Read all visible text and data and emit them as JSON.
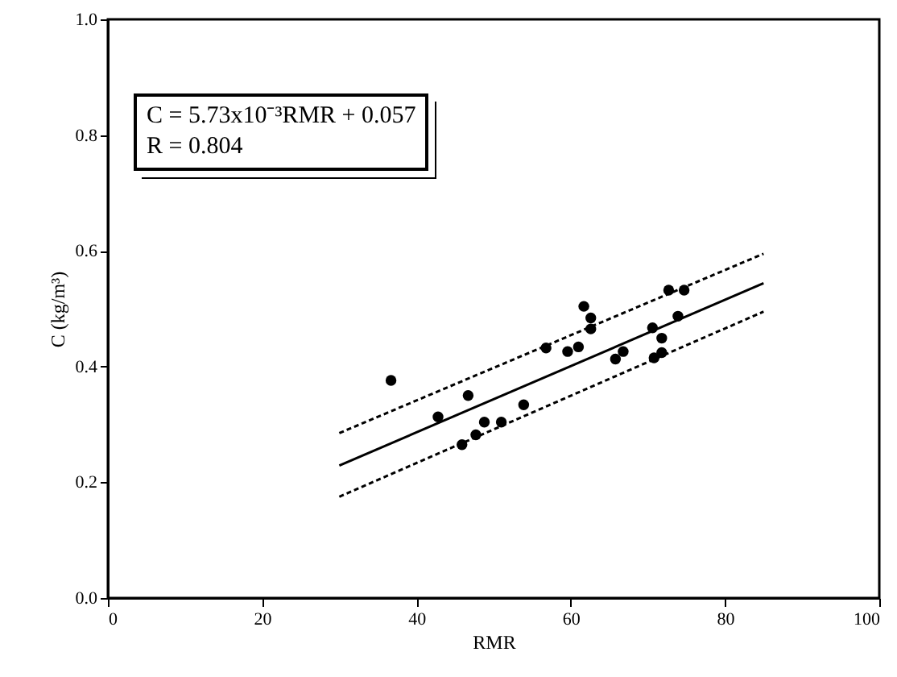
{
  "chart_data": {
    "type": "scatter",
    "xlabel": "RMR",
    "ylabel": "C (kg/m³)",
    "xlim": [
      0,
      100
    ],
    "ylim": [
      0,
      1
    ],
    "xticks": [
      0,
      20,
      40,
      60,
      80,
      100
    ],
    "yticks": [
      {
        "value": 0,
        "label": "0.0"
      },
      {
        "value": 0.2,
        "label": "0.2"
      },
      {
        "value": 0.4,
        "label": "0.4"
      },
      {
        "value": 0.6,
        "label": "0.6"
      },
      {
        "value": 0.8,
        "label": "0.8"
      },
      {
        "value": 1,
        "label": "1.0"
      }
    ],
    "grid": false,
    "annotations": [
      "C = 5.73x10⁻³RMR + 0.057",
      "R = 0.804"
    ],
    "series": [
      {
        "type": "scatter",
        "marker": "circle",
        "color": "#000000",
        "x": [
          36.7,
          42.8,
          45.9,
          46.7,
          47.7,
          48.8,
          51,
          53.9,
          56.8,
          59.6,
          61,
          61.7,
          62.6,
          62.6,
          65.8,
          66.8,
          70.6,
          70.8,
          71.8,
          71.8,
          72.7,
          73.9,
          74.7
        ],
        "values": [
          0.376,
          0.313,
          0.265,
          0.35,
          0.282,
          0.304,
          0.304,
          0.334,
          0.432,
          0.426,
          0.434,
          0.504,
          0.484,
          0.465,
          0.413,
          0.426,
          0.467,
          0.415,
          0.449,
          0.424,
          0.532,
          0.487,
          0.532
        ]
      },
      {
        "type": "line",
        "color": "#000000",
        "line_style": "solid",
        "x": [
          30,
          85
        ],
        "values": [
          0.229,
          0.544
        ]
      },
      {
        "type": "line",
        "color": "#000000",
        "line_style": "dashed",
        "x": [
          30,
          85
        ],
        "values": [
          0.285,
          0.595
        ]
      },
      {
        "type": "line",
        "color": "#000000",
        "line_style": "dashed",
        "x": [
          30,
          85
        ],
        "values": [
          0.175,
          0.495
        ]
      }
    ]
  }
}
